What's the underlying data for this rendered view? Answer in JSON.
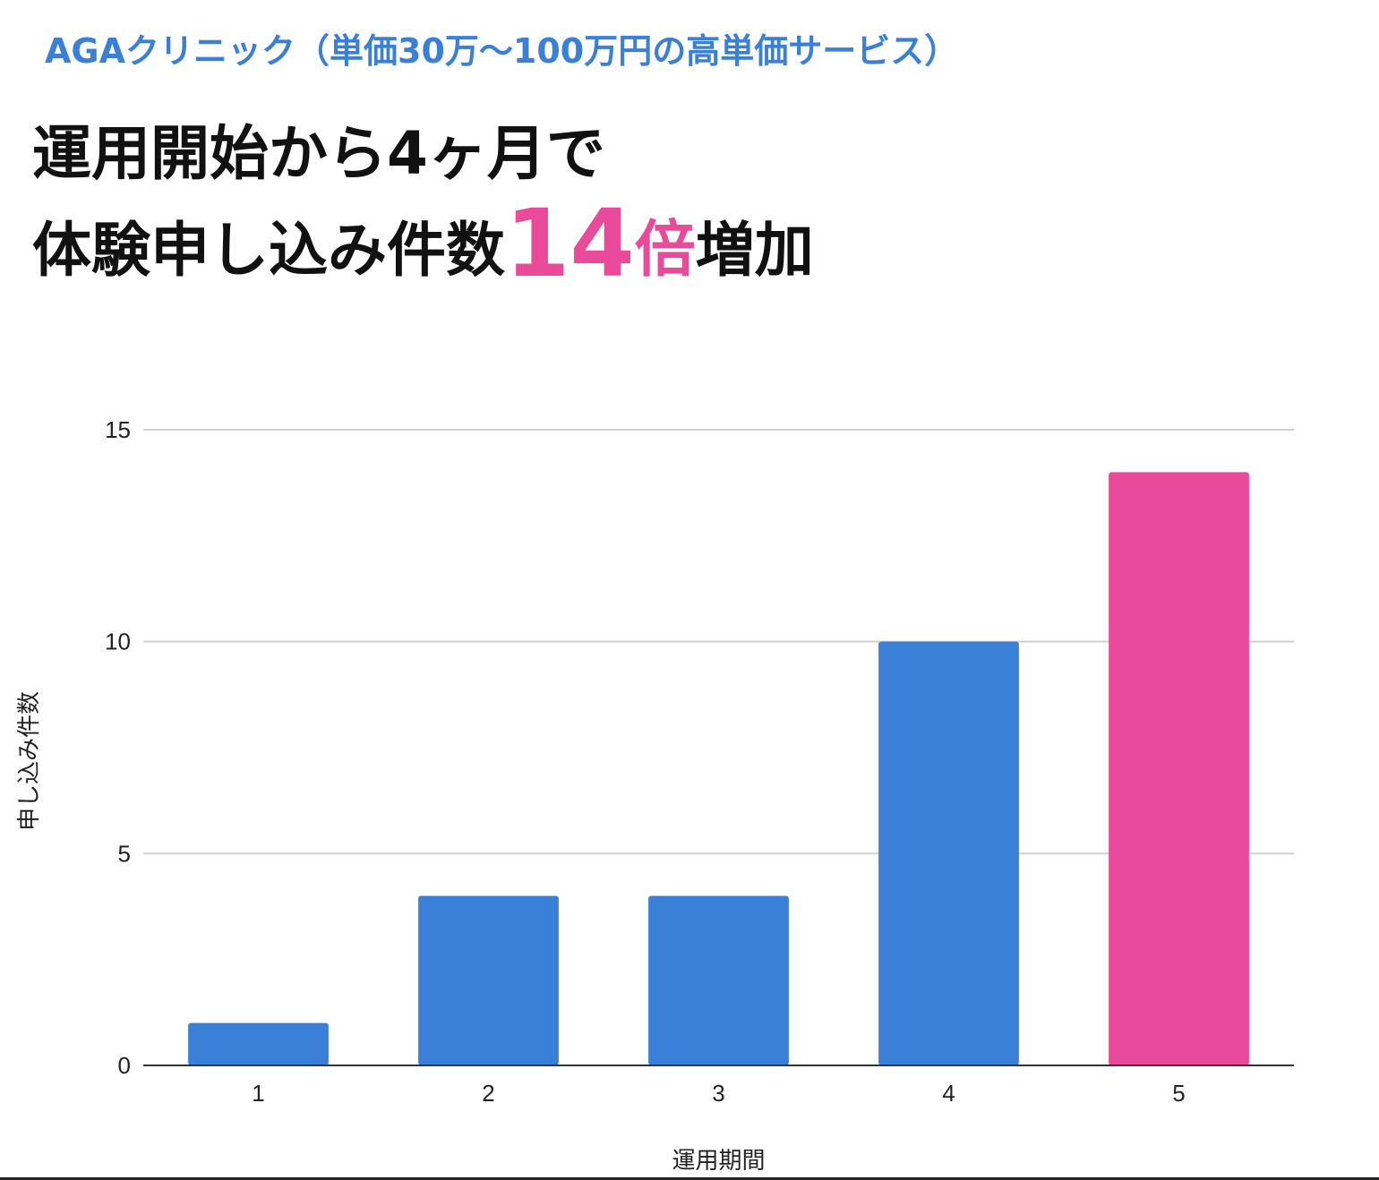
{
  "header": {
    "subtitle": "AGAクリニック（単価30万〜100万円の高単価サービス）",
    "headline_line1": "運用開始から4ヶ月で",
    "headline_line2_prefix": "体験申し込み件数",
    "headline_highlight_number": "14",
    "headline_highlight_unit": "倍",
    "headline_line2_suffix": "増加"
  },
  "colors": {
    "accent_blue": "#3a80d8",
    "accent_pink": "#e94b9a",
    "text": "#111111",
    "grid": "#d0d0d0",
    "axis": "#333333"
  },
  "chart_data": {
    "type": "bar",
    "categories": [
      "1",
      "2",
      "3",
      "4",
      "5"
    ],
    "values": [
      1,
      4,
      4,
      10,
      14
    ],
    "bar_colors": [
      "#3a80d8",
      "#3a80d8",
      "#3a80d8",
      "#3a80d8",
      "#e94b9a"
    ],
    "title": "",
    "xlabel": "運用期間",
    "ylabel": "申し込み件数",
    "ylim": [
      0,
      15
    ],
    "yticks": [
      0,
      5,
      10,
      15
    ],
    "grid": true,
    "legend": "none"
  }
}
